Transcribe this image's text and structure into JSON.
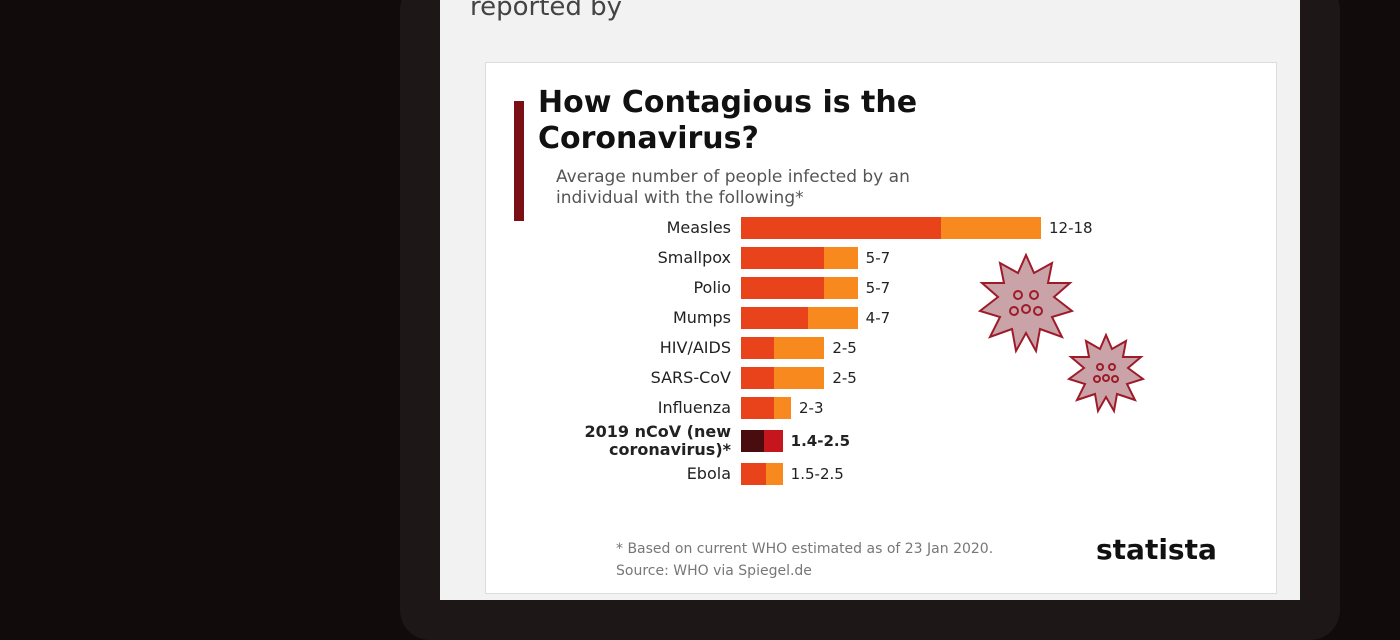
{
  "header": {
    "text": "reported by"
  },
  "chart_data": {
    "type": "range-bar",
    "title": "How Contagious is the Coronavirus?",
    "subtitle": "Average number of people infected by an individual with the following*",
    "categories": [
      "Measles",
      "Smallpox",
      "Polio",
      "Mumps",
      "HIV/AIDS",
      "SARS-CoV",
      "Influenza",
      "2019 nCoV (new coronavirus)*",
      "Ebola"
    ],
    "low": [
      12,
      5,
      5,
      4,
      2,
      2,
      2,
      1.4,
      1.5
    ],
    "high": [
      18,
      7,
      7,
      7,
      5,
      5,
      3,
      2.5,
      2.5
    ],
    "value_labels": [
      "12-18",
      "5-7",
      "5-7",
      "4-7",
      "2-5",
      "2-5",
      "2-3",
      "1.4-2.5",
      "1.5-2.5"
    ],
    "low_color": "#e8431a",
    "high_color": "#f7891e",
    "highlight": {
      "index": 7,
      "low_color": "#4a0d0f",
      "high_color": "#c4161c"
    },
    "footnote": "* Based on current WHO estimated as of 23 Jan 2020.",
    "source": "Source: WHO via Spiegel.de",
    "brand": "statista"
  }
}
